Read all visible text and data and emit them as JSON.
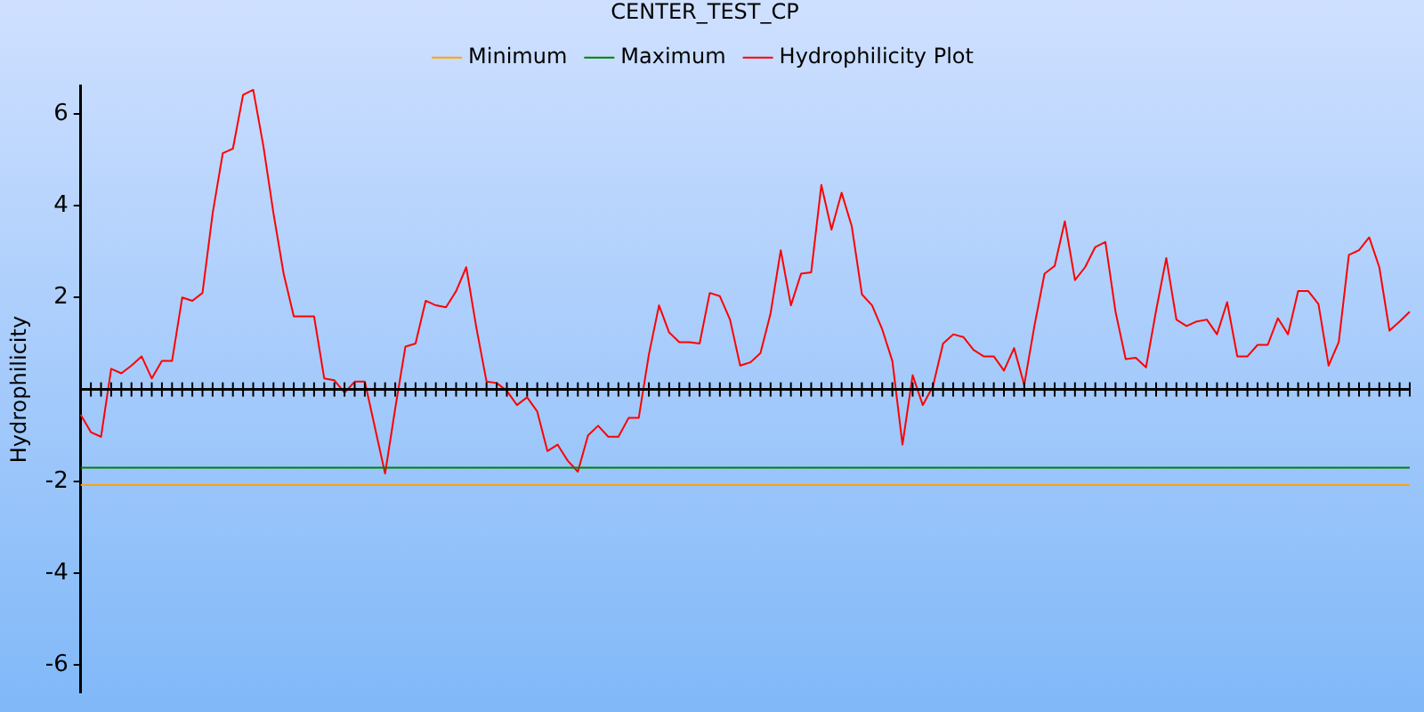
{
  "chart_data": {
    "type": "line",
    "title": "CENTER_TEST_CP",
    "ylabel": "Hydrophilicity",
    "categories": [
      null,
      null,
      null,
      null,
      null,
      null,
      null,
      null,
      null,
      null,
      null,
      null,
      null,
      null,
      null,
      null,
      null,
      null,
      null,
      null,
      null,
      null,
      null,
      null,
      null,
      null,
      null,
      null,
      null,
      null,
      null,
      null,
      null,
      null,
      null,
      null,
      null,
      null,
      null,
      null,
      null,
      null,
      null,
      null,
      null,
      null,
      null,
      null,
      null,
      null,
      null,
      null,
      null,
      null,
      null,
      null,
      null,
      null,
      null,
      null,
      null,
      null,
      null,
      null,
      null,
      null,
      null,
      null,
      null,
      null,
      null,
      null,
      null,
      null,
      null,
      null,
      null,
      null,
      null,
      null,
      null,
      null,
      null,
      null,
      null,
      null,
      null,
      null,
      null,
      null,
      null,
      null,
      null,
      null,
      null,
      null,
      null,
      null,
      null,
      null,
      null,
      null,
      null,
      null,
      null,
      null,
      null,
      null,
      null,
      null,
      null,
      null,
      null,
      null,
      null,
      null,
      null,
      null,
      null,
      null,
      null,
      null,
      null,
      null,
      null,
      null,
      null,
      null,
      null,
      null,
      null,
      null
    ],
    "series": [
      {
        "name": "Minimum",
        "color": "#ffa500",
        "values": [
          -2.08,
          -2.08,
          -2.08,
          -2.08,
          -2.08,
          -2.08,
          -2.08,
          -2.08,
          -2.08,
          -2.08,
          -2.08,
          -2.08,
          -2.08,
          -2.08,
          -2.08,
          -2.08,
          -2.08,
          -2.08,
          -2.08,
          -2.08,
          -2.08,
          -2.08,
          -2.08,
          -2.08,
          -2.08,
          -2.08,
          -2.08,
          -2.08,
          -2.08,
          -2.08,
          -2.08,
          -2.08,
          -2.08,
          -2.08,
          -2.08,
          -2.08,
          -2.08,
          -2.08,
          -2.08,
          -2.08,
          -2.08,
          -2.08,
          -2.08,
          -2.08,
          -2.08,
          -2.08,
          -2.08,
          -2.08,
          -2.08,
          -2.08,
          -2.08,
          -2.08,
          -2.08,
          -2.08,
          -2.08,
          -2.08,
          -2.08,
          -2.08,
          -2.08,
          -2.08,
          -2.08,
          -2.08,
          -2.08,
          -2.08,
          -2.08,
          -2.08,
          -2.08,
          -2.08,
          -2.08,
          -2.08,
          -2.08,
          -2.08,
          -2.08,
          -2.08,
          -2.08,
          -2.08,
          -2.08,
          -2.08,
          -2.08,
          -2.08,
          -2.08,
          -2.08,
          -2.08,
          -2.08,
          -2.08,
          -2.08,
          -2.08,
          -2.08,
          -2.08,
          -2.08,
          -2.08,
          -2.08,
          -2.08,
          -2.08,
          -2.08,
          -2.08,
          -2.08,
          -2.08,
          -2.08,
          -2.08,
          -2.08,
          -2.08,
          -2.08,
          -2.08,
          -2.08,
          -2.08,
          -2.08,
          -2.08,
          -2.08,
          -2.08,
          -2.08,
          -2.08,
          -2.08,
          -2.08,
          -2.08,
          -2.08,
          -2.08,
          -2.08,
          -2.08,
          -2.08,
          -2.08,
          -2.08,
          -2.08,
          -2.08,
          -2.08,
          -2.08,
          -2.08,
          -2.08,
          -2.08,
          -2.08,
          -2.08,
          -2.08
        ]
      },
      {
        "name": "Maximum",
        "color": "#008000",
        "values": [
          -1.7,
          -1.7,
          -1.7,
          -1.7,
          -1.7,
          -1.7,
          -1.7,
          -1.7,
          -1.7,
          -1.7,
          -1.7,
          -1.7,
          -1.7,
          -1.7,
          -1.7,
          -1.7,
          -1.7,
          -1.7,
          -1.7,
          -1.7,
          -1.7,
          -1.7,
          -1.7,
          -1.7,
          -1.7,
          -1.7,
          -1.7,
          -1.7,
          -1.7,
          -1.7,
          -1.7,
          -1.7,
          -1.7,
          -1.7,
          -1.7,
          -1.7,
          -1.7,
          -1.7,
          -1.7,
          -1.7,
          -1.7,
          -1.7,
          -1.7,
          -1.7,
          -1.7,
          -1.7,
          -1.7,
          -1.7,
          -1.7,
          -1.7,
          -1.7,
          -1.7,
          -1.7,
          -1.7,
          -1.7,
          -1.7,
          -1.7,
          -1.7,
          -1.7,
          -1.7,
          -1.7,
          -1.7,
          -1.7,
          -1.7,
          -1.7,
          -1.7,
          -1.7,
          -1.7,
          -1.7,
          -1.7,
          -1.7,
          -1.7,
          -1.7,
          -1.7,
          -1.7,
          -1.7,
          -1.7,
          -1.7,
          -1.7,
          -1.7,
          -1.7,
          -1.7,
          -1.7,
          -1.7,
          -1.7,
          -1.7,
          -1.7,
          -1.7,
          -1.7,
          -1.7,
          -1.7,
          -1.7,
          -1.7,
          -1.7,
          -1.7,
          -1.7,
          -1.7,
          -1.7,
          -1.7,
          -1.7,
          -1.7,
          -1.7,
          -1.7,
          -1.7,
          -1.7,
          -1.7,
          -1.7,
          -1.7,
          -1.7,
          -1.7,
          -1.7,
          -1.7,
          -1.7,
          -1.7,
          -1.7,
          -1.7,
          -1.7,
          -1.7,
          -1.7,
          -1.7,
          -1.7,
          -1.7,
          -1.7,
          -1.7,
          -1.7,
          -1.7,
          -1.7,
          -1.7,
          -1.7,
          -1.7,
          -1.7,
          -1.7
        ]
      },
      {
        "name": "Hydrophilicity Plot",
        "color": "#ff0000",
        "values": [
          -0.55,
          -0.93,
          -1.03,
          0.45,
          0.35,
          0.52,
          0.72,
          0.24,
          0.62,
          0.62,
          2.0,
          1.93,
          2.1,
          3.83,
          5.14,
          5.24,
          6.41,
          6.52,
          5.3,
          3.83,
          2.52,
          1.59,
          1.59,
          1.59,
          0.24,
          0.2,
          -0.07,
          0.17,
          0.17,
          -0.83,
          -1.83,
          -0.41,
          0.93,
          1.0,
          1.93,
          1.83,
          1.79,
          2.14,
          2.66,
          1.34,
          0.17,
          0.14,
          -0.03,
          -0.34,
          -0.17,
          -0.48,
          -1.34,
          -1.2,
          -1.55,
          -1.79,
          -1.0,
          -0.79,
          -1.03,
          -1.03,
          -0.62,
          -0.62,
          0.76,
          1.83,
          1.24,
          1.03,
          1.03,
          1.0,
          2.1,
          2.03,
          1.52,
          0.52,
          0.59,
          0.79,
          1.66,
          3.03,
          1.83,
          2.52,
          2.55,
          4.45,
          3.48,
          4.28,
          3.55,
          2.07,
          1.83,
          1.31,
          0.62,
          -1.2,
          0.31,
          -0.34,
          0.07,
          1.0,
          1.2,
          1.14,
          0.86,
          0.72,
          0.72,
          0.41,
          0.9,
          0.1,
          1.38,
          2.52,
          2.69,
          3.66,
          2.38,
          2.66,
          3.1,
          3.21,
          1.69,
          0.66,
          0.69,
          0.48,
          1.72,
          2.86,
          1.52,
          1.38,
          1.48,
          1.52,
          1.2,
          1.9,
          0.72,
          0.72,
          0.97,
          0.97,
          1.55,
          1.2,
          2.14,
          2.14,
          1.86,
          0.52,
          1.03,
          2.93,
          3.03,
          3.31,
          2.66,
          1.28,
          1.48,
          1.69
        ]
      }
    ],
    "ylim": [
      -6.6,
      6.6
    ],
    "yticks": [
      -6,
      -4,
      -2,
      2,
      4,
      6
    ],
    "tick_labels": "y",
    "grid": false,
    "legend": "top",
    "marker": "none",
    "line_style": "solid"
  }
}
